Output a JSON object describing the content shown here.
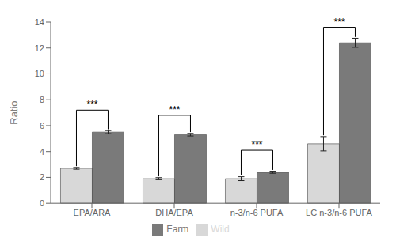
{
  "chart_data": {
    "type": "bar",
    "categories": [
      "EPA/ARA",
      "DHA/EPA",
      "n-3/n-6 PUFA",
      "LC n-3/n-6 PUFA"
    ],
    "series": [
      {
        "name": "Wild",
        "color": "#d8d8d8",
        "values": [
          2.7,
          1.9,
          1.9,
          4.6
        ],
        "errors": [
          0.07,
          0.08,
          0.15,
          0.55
        ]
      },
      {
        "name": "Farm",
        "color": "#7a7a7a",
        "values": [
          5.5,
          5.3,
          2.4,
          12.4
        ],
        "errors": [
          0.12,
          0.1,
          0.08,
          0.35
        ]
      }
    ],
    "ylabel": "Ratio",
    "ylim": [
      0,
      14
    ],
    "yticks": [
      0,
      2,
      4,
      6,
      8,
      10,
      12,
      14
    ],
    "grid": false,
    "legend": "bottom",
    "annotations": [
      {
        "category": "EPA/ARA",
        "y": 7.2,
        "label": "***"
      },
      {
        "category": "DHA/EPA",
        "y": 6.8,
        "label": "***"
      },
      {
        "category": "n-3/n-6 PUFA",
        "y": 4.1,
        "label": "***"
      },
      {
        "category": "LC n-3/n-6 PUFA",
        "y": 13.6,
        "label": "***"
      }
    ]
  }
}
